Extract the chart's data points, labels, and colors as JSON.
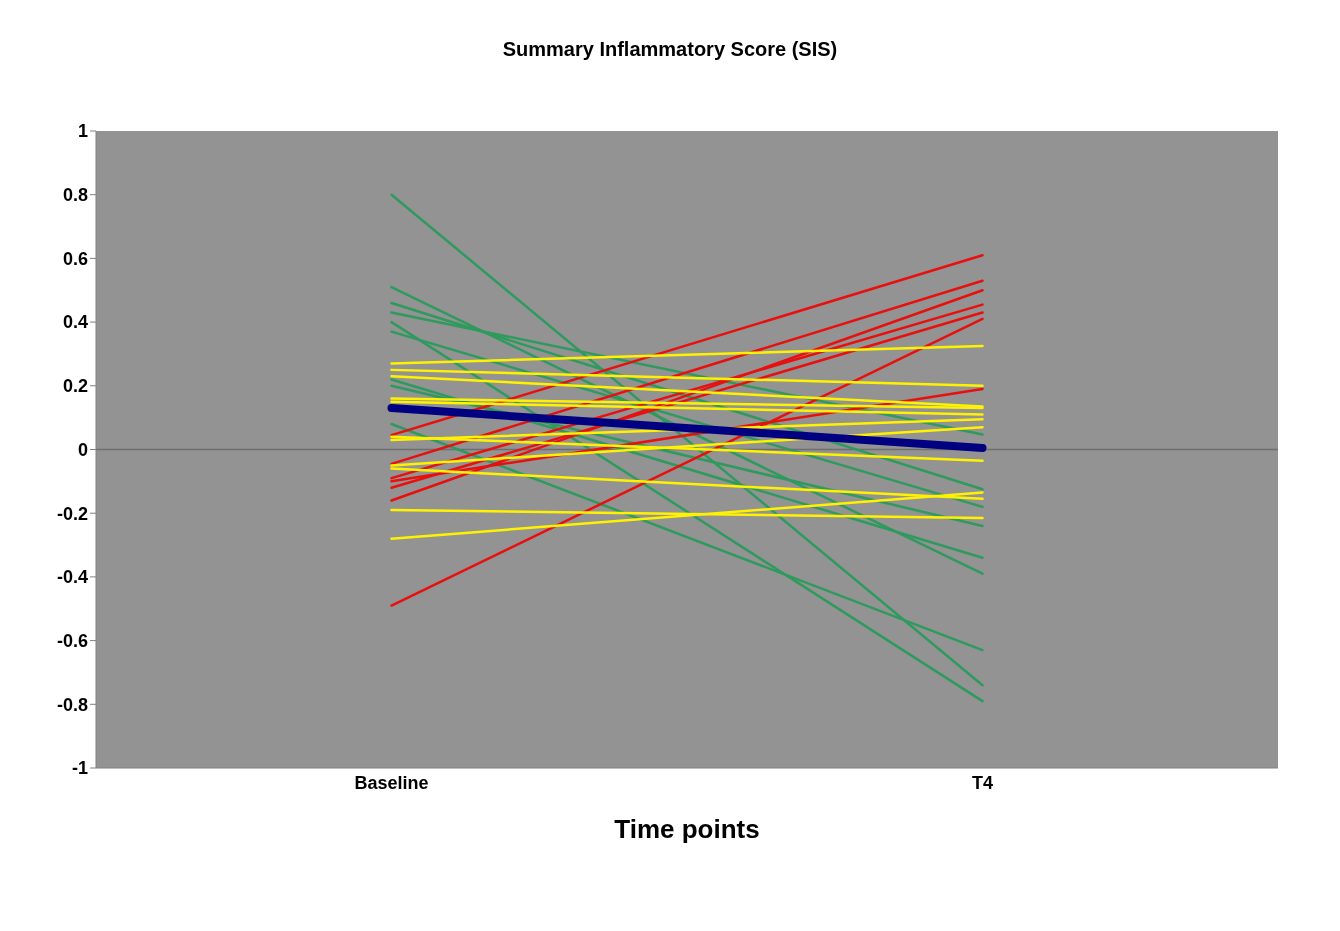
{
  "chart_data": {
    "type": "line",
    "title": "Summary Inflammatory Score (SIS)",
    "xlabel": "Time points",
    "categories": [
      "Baseline",
      "T4"
    ],
    "series": [
      {
        "color": "#2e9a5e",
        "values": [
          0.8,
          -0.74
        ]
      },
      {
        "color": "#2e9a5e",
        "values": [
          0.51,
          -0.39
        ]
      },
      {
        "color": "#2e9a5e",
        "values": [
          0.46,
          -0.125
        ]
      },
      {
        "color": "#2e9a5e",
        "values": [
          0.43,
          0.047
        ]
      },
      {
        "color": "#2e9a5e",
        "values": [
          0.4,
          -0.79
        ]
      },
      {
        "color": "#2e9a5e",
        "values": [
          0.37,
          -0.18
        ]
      },
      {
        "color": "#2e9a5e",
        "values": [
          0.22,
          -0.34
        ]
      },
      {
        "color": "#2e9a5e",
        "values": [
          0.2,
          -0.24
        ]
      },
      {
        "color": "#2e9a5e",
        "values": [
          0.08,
          -0.63
        ]
      },
      {
        "color": "#e8100f",
        "values": [
          0.045,
          0.61
        ]
      },
      {
        "color": "#e8100f",
        "values": [
          -0.045,
          0.53
        ]
      },
      {
        "color": "#e8100f",
        "values": [
          -0.09,
          0.455
        ]
      },
      {
        "color": "#e8100f",
        "values": [
          -0.12,
          0.43
        ]
      },
      {
        "color": "#e8100f",
        "values": [
          -0.16,
          0.5
        ]
      },
      {
        "color": "#e8100f",
        "values": [
          -0.1,
          0.19
        ]
      },
      {
        "color": "#e8100f",
        "values": [
          -0.49,
          0.41
        ]
      },
      {
        "color": "#fff200",
        "values": [
          0.27,
          0.325
        ]
      },
      {
        "color": "#fff200",
        "values": [
          0.25,
          0.2
        ]
      },
      {
        "color": "#fff200",
        "values": [
          0.23,
          0.135
        ]
      },
      {
        "color": "#fff200",
        "values": [
          0.16,
          0.13
        ]
      },
      {
        "color": "#fff200",
        "values": [
          0.15,
          0.11
        ]
      },
      {
        "color": "#fff200",
        "values": [
          0.04,
          -0.035
        ]
      },
      {
        "color": "#fff200",
        "values": [
          0.03,
          0.095
        ]
      },
      {
        "color": "#fff200",
        "values": [
          -0.05,
          0.07
        ]
      },
      {
        "color": "#fff200",
        "values": [
          -0.06,
          -0.155
        ]
      },
      {
        "color": "#fff200",
        "values": [
          -0.19,
          -0.215
        ]
      },
      {
        "color": "#fff200",
        "values": [
          -0.28,
          -0.135
        ]
      },
      {
        "color": "#000080",
        "values": [
          0.13,
          0.005
        ]
      }
    ],
    "ylim": [
      -1,
      1
    ],
    "yticks": [
      -1,
      -0.8,
      -0.6,
      -0.4,
      -0.2,
      0,
      0.2,
      0.4,
      0.6,
      0.8,
      1
    ],
    "ref_lines": [
      {
        "axis": "y",
        "value": 0,
        "color": "#6e6e6e"
      }
    ],
    "grid": false,
    "marker": "none",
    "line_style": "solid"
  }
}
